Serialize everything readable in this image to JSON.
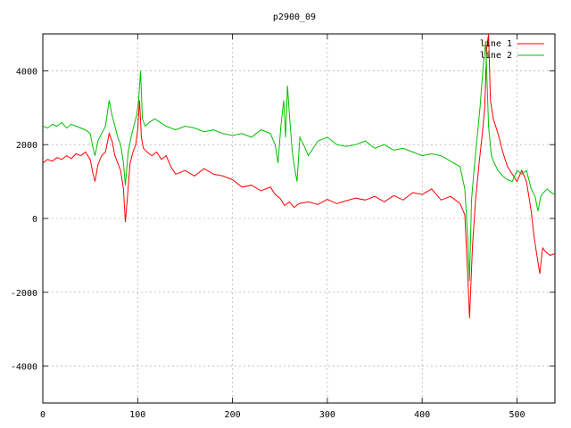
{
  "chart_data": {
    "type": "line",
    "title": "p2900_09",
    "xlabel": "",
    "ylabel": "",
    "xlim": [
      0,
      540
    ],
    "ylim": [
      -5000,
      5000
    ],
    "x_ticks": [
      0,
      100,
      200,
      300,
      400,
      500
    ],
    "y_ticks": [
      -4000,
      -2000,
      0,
      2000,
      4000
    ],
    "grid": true,
    "legend": "top-right",
    "series": [
      {
        "name": "line 1",
        "color": "#ff0000",
        "points": [
          [
            0,
            1500
          ],
          [
            5,
            1600
          ],
          [
            10,
            1550
          ],
          [
            15,
            1650
          ],
          [
            20,
            1600
          ],
          [
            25,
            1700
          ],
          [
            30,
            1620
          ],
          [
            35,
            1750
          ],
          [
            40,
            1700
          ],
          [
            45,
            1800
          ],
          [
            50,
            1600
          ],
          [
            53,
            1200
          ],
          [
            55,
            1000
          ],
          [
            58,
            1450
          ],
          [
            62,
            1700
          ],
          [
            66,
            1800
          ],
          [
            70,
            2300
          ],
          [
            73,
            2100
          ],
          [
            76,
            1700
          ],
          [
            79,
            1500
          ],
          [
            82,
            1300
          ],
          [
            85,
            800
          ],
          [
            87,
            -100
          ],
          [
            89,
            500
          ],
          [
            92,
            1500
          ],
          [
            95,
            1800
          ],
          [
            98,
            2000
          ],
          [
            100,
            2400
          ],
          [
            102,
            3200
          ],
          [
            104,
            2200
          ],
          [
            106,
            1900
          ],
          [
            110,
            1800
          ],
          [
            115,
            1700
          ],
          [
            120,
            1800
          ],
          [
            125,
            1600
          ],
          [
            130,
            1700
          ],
          [
            135,
            1400
          ],
          [
            140,
            1200
          ],
          [
            145,
            1250
          ],
          [
            150,
            1300
          ],
          [
            160,
            1150
          ],
          [
            170,
            1350
          ],
          [
            180,
            1200
          ],
          [
            190,
            1150
          ],
          [
            200,
            1050
          ],
          [
            210,
            850
          ],
          [
            220,
            900
          ],
          [
            230,
            750
          ],
          [
            240,
            850
          ],
          [
            245,
            650
          ],
          [
            250,
            550
          ],
          [
            255,
            350
          ],
          [
            260,
            450
          ],
          [
            265,
            300
          ],
          [
            270,
            400
          ],
          [
            280,
            450
          ],
          [
            290,
            380
          ],
          [
            300,
            520
          ],
          [
            310,
            400
          ],
          [
            320,
            480
          ],
          [
            330,
            550
          ],
          [
            340,
            500
          ],
          [
            350,
            600
          ],
          [
            360,
            450
          ],
          [
            370,
            620
          ],
          [
            380,
            500
          ],
          [
            390,
            700
          ],
          [
            400,
            650
          ],
          [
            410,
            800
          ],
          [
            420,
            500
          ],
          [
            430,
            600
          ],
          [
            440,
            400
          ],
          [
            445,
            100
          ],
          [
            448,
            -1500
          ],
          [
            450,
            -2700
          ],
          [
            453,
            -800
          ],
          [
            456,
            400
          ],
          [
            460,
            1500
          ],
          [
            463,
            2200
          ],
          [
            466,
            3000
          ],
          [
            468,
            4600
          ],
          [
            470,
            5000
          ],
          [
            472,
            3200
          ],
          [
            475,
            2700
          ],
          [
            480,
            2300
          ],
          [
            485,
            1800
          ],
          [
            490,
            1400
          ],
          [
            495,
            1200
          ],
          [
            500,
            1000
          ],
          [
            505,
            1300
          ],
          [
            510,
            1000
          ],
          [
            515,
            200
          ],
          [
            518,
            -500
          ],
          [
            521,
            -1000
          ],
          [
            524,
            -1500
          ],
          [
            527,
            -800
          ],
          [
            530,
            -900
          ],
          [
            535,
            -1000
          ],
          [
            540,
            -950
          ]
        ]
      },
      {
        "name": "line 2",
        "color": "#00c000",
        "points": [
          [
            0,
            2500
          ],
          [
            5,
            2450
          ],
          [
            10,
            2550
          ],
          [
            15,
            2500
          ],
          [
            20,
            2600
          ],
          [
            25,
            2450
          ],
          [
            30,
            2550
          ],
          [
            35,
            2500
          ],
          [
            40,
            2450
          ],
          [
            45,
            2400
          ],
          [
            50,
            2300
          ],
          [
            53,
            1900
          ],
          [
            55,
            1700
          ],
          [
            58,
            2100
          ],
          [
            62,
            2300
          ],
          [
            66,
            2500
          ],
          [
            70,
            3200
          ],
          [
            73,
            2800
          ],
          [
            76,
            2500
          ],
          [
            79,
            2200
          ],
          [
            82,
            2000
          ],
          [
            85,
            1500
          ],
          [
            87,
            900
          ],
          [
            90,
            1800
          ],
          [
            93,
            2200
          ],
          [
            96,
            2500
          ],
          [
            99,
            2800
          ],
          [
            101,
            3200
          ],
          [
            103,
            4000
          ],
          [
            105,
            2700
          ],
          [
            108,
            2500
          ],
          [
            112,
            2600
          ],
          [
            118,
            2700
          ],
          [
            124,
            2600
          ],
          [
            130,
            2500
          ],
          [
            140,
            2400
          ],
          [
            150,
            2500
          ],
          [
            160,
            2450
          ],
          [
            170,
            2350
          ],
          [
            180,
            2400
          ],
          [
            190,
            2300
          ],
          [
            200,
            2250
          ],
          [
            210,
            2300
          ],
          [
            220,
            2200
          ],
          [
            230,
            2400
          ],
          [
            240,
            2300
          ],
          [
            245,
            2000
          ],
          [
            248,
            1500
          ],
          [
            251,
            2500
          ],
          [
            254,
            3200
          ],
          [
            256,
            2200
          ],
          [
            258,
            3600
          ],
          [
            260,
            2800
          ],
          [
            263,
            1800
          ],
          [
            266,
            1300
          ],
          [
            268,
            1000
          ],
          [
            271,
            2200
          ],
          [
            275,
            2000
          ],
          [
            280,
            1700
          ],
          [
            290,
            2100
          ],
          [
            300,
            2200
          ],
          [
            310,
            2000
          ],
          [
            320,
            1950
          ],
          [
            330,
            2000
          ],
          [
            340,
            2100
          ],
          [
            350,
            1900
          ],
          [
            360,
            2000
          ],
          [
            370,
            1850
          ],
          [
            380,
            1900
          ],
          [
            390,
            1800
          ],
          [
            400,
            1700
          ],
          [
            410,
            1750
          ],
          [
            420,
            1700
          ],
          [
            430,
            1550
          ],
          [
            440,
            1400
          ],
          [
            445,
            800
          ],
          [
            448,
            -500
          ],
          [
            450,
            -1700
          ],
          [
            452,
            500
          ],
          [
            455,
            1400
          ],
          [
            458,
            2200
          ],
          [
            461,
            3000
          ],
          [
            464,
            4000
          ],
          [
            467,
            4800
          ],
          [
            470,
            2500
          ],
          [
            473,
            1700
          ],
          [
            476,
            1500
          ],
          [
            480,
            1300
          ],
          [
            485,
            1150
          ],
          [
            490,
            1050
          ],
          [
            495,
            1000
          ],
          [
            500,
            1300
          ],
          [
            505,
            1200
          ],
          [
            510,
            1300
          ],
          [
            515,
            800
          ],
          [
            519,
            600
          ],
          [
            522,
            200
          ],
          [
            525,
            600
          ],
          [
            528,
            700
          ],
          [
            532,
            800
          ],
          [
            536,
            700
          ],
          [
            540,
            650
          ]
        ]
      }
    ]
  }
}
